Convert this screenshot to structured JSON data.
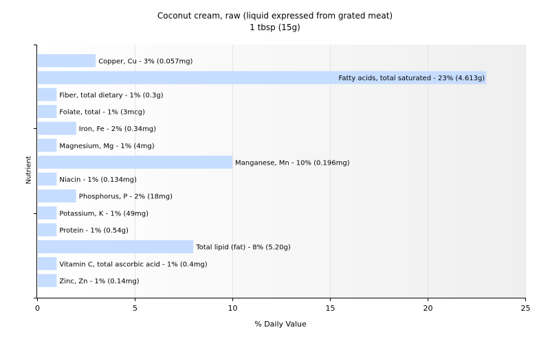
{
  "chart_data": {
    "type": "bar",
    "orientation": "horizontal",
    "title": "Coconut cream, raw (liquid expressed from grated meat)",
    "subtitle": "1 tbsp (15g)",
    "xlabel": "% Daily Value",
    "ylabel": "Nutrient",
    "xlim": [
      0,
      25
    ],
    "xticks": [
      0,
      5,
      10,
      15,
      20,
      25
    ],
    "grid": true,
    "bar_color": "#c6ddff",
    "categories": [
      "Copper, Cu",
      "Fatty acids, total saturated",
      "Fiber, total dietary",
      "Folate, total",
      "Iron, Fe",
      "Magnesium, Mg",
      "Manganese, Mn",
      "Niacin",
      "Phosphorus, P",
      "Potassium, K",
      "Protein",
      "Total lipid (fat)",
      "Vitamin C, total ascorbic acid",
      "Zinc, Zn"
    ],
    "values": [
      3,
      23,
      1,
      1,
      2,
      1,
      10,
      1,
      2,
      1,
      1,
      8,
      1,
      1
    ],
    "labels": [
      "Copper, Cu - 3% (0.057mg)",
      "Fatty acids, total saturated - 23% (4.613g)",
      "Fiber, total dietary - 1% (0.3g)",
      "Folate, total - 1% (3mcg)",
      "Iron, Fe - 2% (0.34mg)",
      "Magnesium, Mg - 1% (4mg)",
      "Manganese, Mn - 10% (0.196mg)",
      "Niacin - 1% (0.134mg)",
      "Phosphorus, P - 2% (18mg)",
      "Potassium, K - 1% (49mg)",
      "Protein - 1% (0.54g)",
      "Total lipid (fat) - 8% (5.20g)",
      "Vitamin C, total ascorbic acid - 1% (0.4mg)",
      "Zinc, Zn - 1% (0.14mg)"
    ]
  }
}
